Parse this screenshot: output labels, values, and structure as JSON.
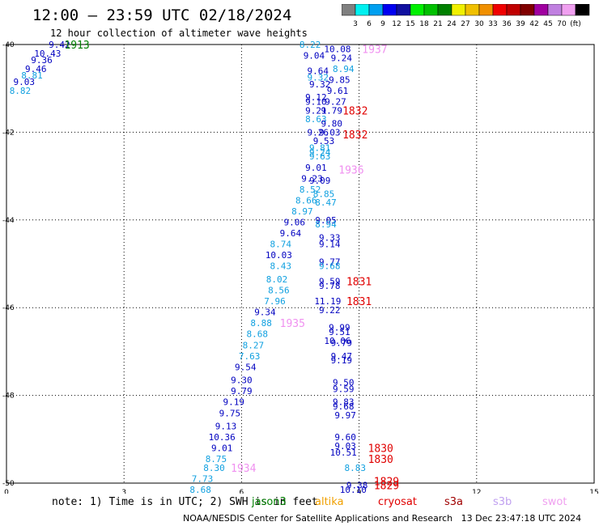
{
  "header": {
    "title": "12:00 – 23:59 UTC 02/18/2024",
    "subtitle": "12 hour collection of altimeter wave heights"
  },
  "color_scale": {
    "labels": [
      "3",
      "6",
      "9",
      "12",
      "15",
      "18",
      "21",
      "24",
      "27",
      "30",
      "33",
      "36",
      "39",
      "42",
      "45",
      "70",
      "(ft)"
    ],
    "colors": [
      "#808080",
      "#00f0f0",
      "#00a0f0",
      "#0000f0",
      "#1010a0",
      "#00f000",
      "#00c000",
      "#008000",
      "#f0f000",
      "#f0c000",
      "#f09000",
      "#f00000",
      "#c00000",
      "#800000",
      "#a000a0",
      "#c080e0",
      "#f0a0f0",
      "#000000"
    ]
  },
  "chart_data": {
    "type": "scatter",
    "title": "12 hour collection of altimeter wave heights",
    "xlim": [
      0,
      15
    ],
    "ylim": [
      -50,
      -40
    ],
    "xticks": [
      "0",
      "3",
      "6",
      "9",
      "12",
      "15"
    ],
    "yticks": [
      "-40",
      "-42",
      "-44",
      "-46",
      "-48",
      "-50"
    ],
    "grid": true,
    "value_labels": [
      {
        "x": 1.35,
        "y": -40.0,
        "text": "9.42",
        "color": "#0000c0"
      },
      {
        "x": 1.05,
        "y": -40.2,
        "text": "10.43",
        "color": "#0000c0"
      },
      {
        "x": 0.9,
        "y": -40.35,
        "text": "9.36",
        "color": "#0000c0"
      },
      {
        "x": 0.75,
        "y": -40.55,
        "text": "9.46",
        "color": "#0000c0"
      },
      {
        "x": 0.65,
        "y": -40.7,
        "text": "8.81",
        "color": "#10a0e0"
      },
      {
        "x": 0.45,
        "y": -40.85,
        "text": "9.03",
        "color": "#0000c0"
      },
      {
        "x": 0.35,
        "y": -41.05,
        "text": "8.82",
        "color": "#10a0e0"
      },
      {
        "x": 7.75,
        "y": -40.0,
        "text": "8.22",
        "color": "#10a0e0"
      },
      {
        "x": 7.85,
        "y": -40.25,
        "text": "9.04",
        "color": "#0000c0"
      },
      {
        "x": 7.95,
        "y": -40.6,
        "text": "9.64",
        "color": "#0000c0"
      },
      {
        "x": 7.95,
        "y": -40.75,
        "text": "9.32",
        "color": "#10a0e0"
      },
      {
        "x": 8.0,
        "y": -40.9,
        "text": "9.32",
        "color": "#0000c0"
      },
      {
        "x": 8.45,
        "y": -40.1,
        "text": "10.08",
        "color": "#0000c0"
      },
      {
        "x": 8.55,
        "y": -40.3,
        "text": "9.24",
        "color": "#0000c0"
      },
      {
        "x": 8.6,
        "y": -40.55,
        "text": "8.94",
        "color": "#10a0e0"
      },
      {
        "x": 8.5,
        "y": -40.8,
        "text": "9.85",
        "color": "#0000c0"
      },
      {
        "x": 8.45,
        "y": -41.05,
        "text": "9.61",
        "color": "#0000c0"
      },
      {
        "x": 7.9,
        "y": -41.2,
        "text": "9.12",
        "color": "#0000c0"
      },
      {
        "x": 7.9,
        "y": -41.3,
        "text": "9.10",
        "color": "#0000c0"
      },
      {
        "x": 8.4,
        "y": -41.3,
        "text": "9.27",
        "color": "#0000c0"
      },
      {
        "x": 7.9,
        "y": -41.5,
        "text": "9.21",
        "color": "#0000c0"
      },
      {
        "x": 8.3,
        "y": -41.5,
        "text": "9.79",
        "color": "#0000c0"
      },
      {
        "x": 7.9,
        "y": -41.7,
        "text": "8.63",
        "color": "#10a0e0"
      },
      {
        "x": 8.3,
        "y": -41.8,
        "text": "9.80",
        "color": "#0000c0"
      },
      {
        "x": 7.95,
        "y": -42.0,
        "text": "9.26",
        "color": "#0000c0"
      },
      {
        "x": 8.25,
        "y": -42.0,
        "text": "9.03",
        "color": "#0000c0"
      },
      {
        "x": 8.1,
        "y": -42.2,
        "text": "9.53",
        "color": "#0000c0"
      },
      {
        "x": 8.0,
        "y": -42.35,
        "text": "9.81",
        "color": "#10a0e0"
      },
      {
        "x": 8.0,
        "y": -42.45,
        "text": "9.24",
        "color": "#10a0e0"
      },
      {
        "x": 8.0,
        "y": -42.55,
        "text": "9.63",
        "color": "#10a0e0"
      },
      {
        "x": 7.9,
        "y": -42.8,
        "text": "9.01",
        "color": "#0000c0"
      },
      {
        "x": 7.8,
        "y": -43.05,
        "text": "9.23",
        "color": "#0000c0"
      },
      {
        "x": 8.0,
        "y": -43.1,
        "text": "9.09",
        "color": "#0000c0"
      },
      {
        "x": 7.75,
        "y": -43.3,
        "text": "8.52",
        "color": "#10a0e0"
      },
      {
        "x": 8.1,
        "y": -43.4,
        "text": "8.85",
        "color": "#10a0e0"
      },
      {
        "x": 7.65,
        "y": -43.55,
        "text": "8.66",
        "color": "#10a0e0"
      },
      {
        "x": 8.15,
        "y": -43.6,
        "text": "8.47",
        "color": "#10a0e0"
      },
      {
        "x": 7.55,
        "y": -43.8,
        "text": "8.97",
        "color": "#10a0e0"
      },
      {
        "x": 7.35,
        "y": -44.05,
        "text": "9.06",
        "color": "#0000c0"
      },
      {
        "x": 8.15,
        "y": -44.0,
        "text": "9.05",
        "color": "#0000c0"
      },
      {
        "x": 8.15,
        "y": -44.1,
        "text": "8.94",
        "color": "#10a0e0"
      },
      {
        "x": 7.25,
        "y": -44.3,
        "text": "9.64",
        "color": "#0000c0"
      },
      {
        "x": 8.25,
        "y": -44.4,
        "text": "9.33",
        "color": "#0000c0"
      },
      {
        "x": 7.0,
        "y": -44.55,
        "text": "8.74",
        "color": "#10a0e0"
      },
      {
        "x": 8.25,
        "y": -44.55,
        "text": "9.14",
        "color": "#0000c0"
      },
      {
        "x": 6.95,
        "y": -44.8,
        "text": "10.03",
        "color": "#0000c0"
      },
      {
        "x": 8.25,
        "y": -44.95,
        "text": "9.77",
        "color": "#0000c0"
      },
      {
        "x": 8.25,
        "y": -45.05,
        "text": "9.68",
        "color": "#10a0e0"
      },
      {
        "x": 7.0,
        "y": -45.05,
        "text": "8.43",
        "color": "#10a0e0"
      },
      {
        "x": 6.9,
        "y": -45.35,
        "text": "8.02",
        "color": "#10a0e0"
      },
      {
        "x": 8.25,
        "y": -45.4,
        "text": "9.59",
        "color": "#0000c0"
      },
      {
        "x": 8.25,
        "y": -45.5,
        "text": "9.78",
        "color": "#0000c0"
      },
      {
        "x": 6.95,
        "y": -45.6,
        "text": "8.56",
        "color": "#10a0e0"
      },
      {
        "x": 6.85,
        "y": -45.85,
        "text": "7.96",
        "color": "#10a0e0"
      },
      {
        "x": 8.2,
        "y": -45.85,
        "text": "11.19",
        "color": "#0000c0"
      },
      {
        "x": 6.6,
        "y": -46.1,
        "text": "9.34",
        "color": "#0000c0"
      },
      {
        "x": 8.25,
        "y": -46.05,
        "text": "9.22",
        "color": "#0000c0"
      },
      {
        "x": 6.5,
        "y": -46.35,
        "text": "8.88",
        "color": "#10a0e0"
      },
      {
        "x": 8.5,
        "y": -46.45,
        "text": "9.99",
        "color": "#0000c0"
      },
      {
        "x": 6.4,
        "y": -46.6,
        "text": "8.68",
        "color": "#10a0e0"
      },
      {
        "x": 8.5,
        "y": -46.55,
        "text": "9.51",
        "color": "#0000c0"
      },
      {
        "x": 8.45,
        "y": -46.75,
        "text": "10.06",
        "color": "#0000c0"
      },
      {
        "x": 8.55,
        "y": -46.8,
        "text": "9.79",
        "color": "#0000c0"
      },
      {
        "x": 6.3,
        "y": -46.85,
        "text": "8.27",
        "color": "#10a0e0"
      },
      {
        "x": 6.2,
        "y": -47.1,
        "text": "7.63",
        "color": "#10a0e0"
      },
      {
        "x": 8.55,
        "y": -47.1,
        "text": "9.47",
        "color": "#0000c0"
      },
      {
        "x": 8.55,
        "y": -47.2,
        "text": "9.19",
        "color": "#0000c0"
      },
      {
        "x": 6.1,
        "y": -47.35,
        "text": "9.54",
        "color": "#0000c0"
      },
      {
        "x": 6.0,
        "y": -47.65,
        "text": "9.30",
        "color": "#0000c0"
      },
      {
        "x": 8.6,
        "y": -47.7,
        "text": "9.50",
        "color": "#0000c0"
      },
      {
        "x": 6.0,
        "y": -47.9,
        "text": "9.79",
        "color": "#0000c0"
      },
      {
        "x": 8.6,
        "y": -47.85,
        "text": "9.59",
        "color": "#0000c0"
      },
      {
        "x": 5.8,
        "y": -48.15,
        "text": "9.19",
        "color": "#0000c0"
      },
      {
        "x": 8.6,
        "y": -48.15,
        "text": "9.83",
        "color": "#0000c0"
      },
      {
        "x": 8.6,
        "y": -48.25,
        "text": "9.68",
        "color": "#0000c0"
      },
      {
        "x": 5.7,
        "y": -48.4,
        "text": "9.75",
        "color": "#0000c0"
      },
      {
        "x": 8.65,
        "y": -48.45,
        "text": "9.97",
        "color": "#0000c0"
      },
      {
        "x": 5.6,
        "y": -48.7,
        "text": "9.13",
        "color": "#0000c0"
      },
      {
        "x": 5.5,
        "y": -48.95,
        "text": "10.36",
        "color": "#0000c0"
      },
      {
        "x": 8.65,
        "y": -48.95,
        "text": "9.60",
        "color": "#0000c0"
      },
      {
        "x": 8.65,
        "y": -49.15,
        "text": "9.03",
        "color": "#0000c0"
      },
      {
        "x": 5.5,
        "y": -49.2,
        "text": "9.01",
        "color": "#0000c0"
      },
      {
        "x": 8.6,
        "y": -49.3,
        "text": "10.51",
        "color": "#0000c0"
      },
      {
        "x": 5.35,
        "y": -49.45,
        "text": "8.75",
        "color": "#10a0e0"
      },
      {
        "x": 5.3,
        "y": -49.65,
        "text": "8.30",
        "color": "#10a0e0"
      },
      {
        "x": 8.9,
        "y": -49.65,
        "text": "8.83",
        "color": "#10a0e0"
      },
      {
        "x": 5.0,
        "y": -49.9,
        "text": "7.73",
        "color": "#10a0e0"
      },
      {
        "x": 8.95,
        "y": -50.05,
        "text": "9.38",
        "color": "#0000c0"
      },
      {
        "x": 8.85,
        "y": -50.15,
        "text": "10.10",
        "color": "#0000c0"
      },
      {
        "x": 4.95,
        "y": -50.15,
        "text": "8.68",
        "color": "#10a0e0"
      }
    ],
    "time_labels": [
      {
        "x": 1.8,
        "y": -40.0,
        "text": "1913",
        "color": "#008000"
      },
      {
        "x": 9.4,
        "y": -40.1,
        "text": "1937",
        "color": "#f090f0"
      },
      {
        "x": 8.9,
        "y": -41.5,
        "text": "1832",
        "color": "#e00000"
      },
      {
        "x": 8.9,
        "y": -42.05,
        "text": "1832",
        "color": "#e00000"
      },
      {
        "x": 8.8,
        "y": -42.85,
        "text": "1936",
        "color": "#f090f0"
      },
      {
        "x": 9.0,
        "y": -45.4,
        "text": "1831",
        "color": "#e00000"
      },
      {
        "x": 9.0,
        "y": -45.85,
        "text": "1831",
        "color": "#e00000"
      },
      {
        "x": 7.3,
        "y": -46.35,
        "text": "1935",
        "color": "#f090f0"
      },
      {
        "x": 6.05,
        "y": -49.65,
        "text": "1934",
        "color": "#f090f0"
      },
      {
        "x": 9.55,
        "y": -49.2,
        "text": "1830",
        "color": "#e00000"
      },
      {
        "x": 9.55,
        "y": -49.45,
        "text": "1830",
        "color": "#e00000"
      },
      {
        "x": 9.7,
        "y": -49.95,
        "text": "1829",
        "color": "#e00000"
      },
      {
        "x": 9.7,
        "y": -50.05,
        "text": "1829",
        "color": "#e00000"
      }
    ]
  },
  "notes": {
    "text": "note: 1) Time is in UTC; 2) SWH is in feet"
  },
  "satellites": [
    {
      "name": "jason3",
      "color": "#008000"
    },
    {
      "name": "altika",
      "color": "#f0a000"
    },
    {
      "name": "cryosat",
      "color": "#e00000"
    },
    {
      "name": "s3a",
      "color": "#a00000"
    },
    {
      "name": "s3b",
      "color": "#c0a0f0"
    },
    {
      "name": "swot",
      "color": "#f0a0f0"
    }
  ],
  "footer": {
    "credit": "NOAA/NESDIS Center for Satellite Applications and Research",
    "timestamp": "13 Dec 23:47:18 UTC 2024"
  }
}
